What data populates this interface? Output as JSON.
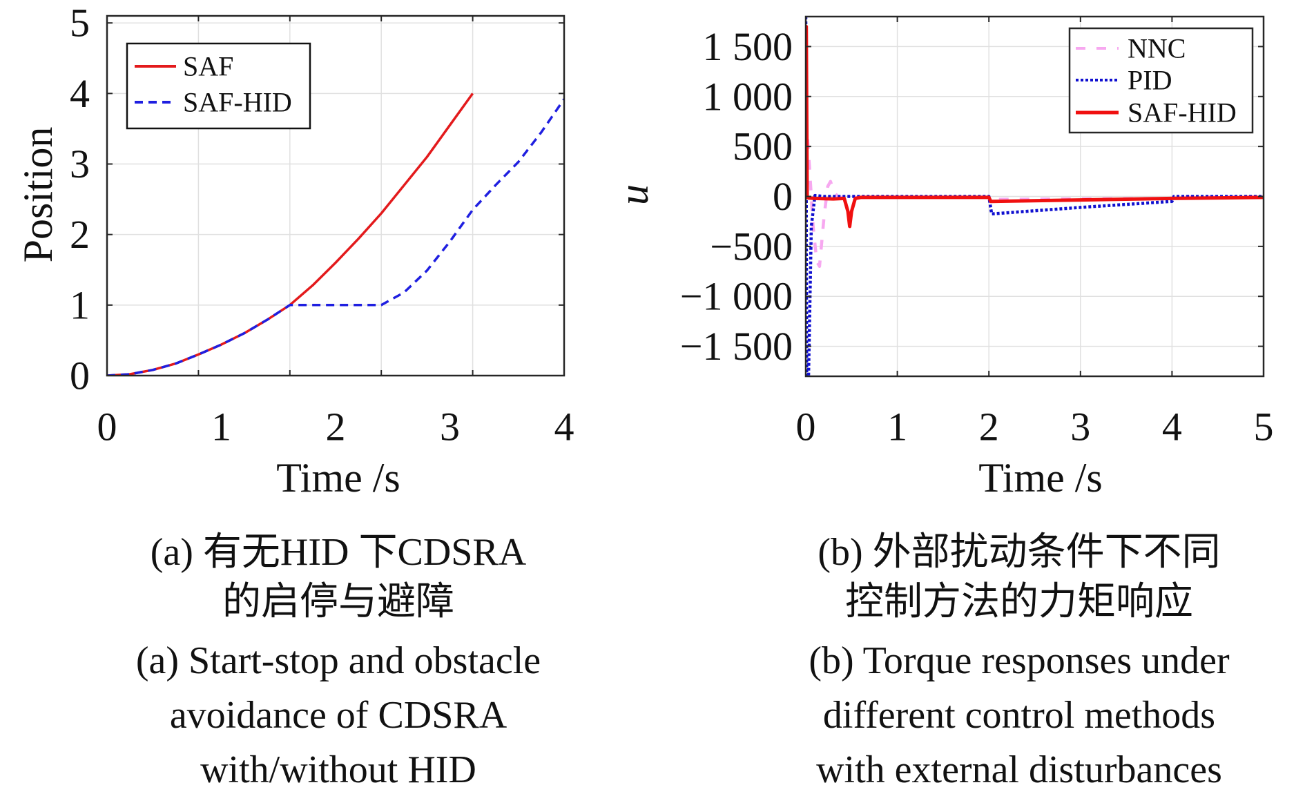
{
  "chart_data": [
    {
      "type": "line",
      "id": "a",
      "title": "",
      "xlabel": "Time /s",
      "ylabel": "Position",
      "xlim": [
        0,
        4
      ],
      "ylim": [
        0,
        5.1
      ],
      "x_ticks": [
        0,
        1,
        2,
        3,
        4
      ],
      "x_tick_labels": [
        "0",
        "1",
        "2",
        "3",
        "4"
      ],
      "x_grid": [
        0,
        0.8,
        1.6,
        2.4,
        3.2,
        4.0
      ],
      "y_ticks": [
        0,
        1,
        2,
        3,
        4,
        5
      ],
      "y_tick_labels": [
        "0",
        "1",
        "2",
        "3",
        "4",
        "5"
      ],
      "grid": true,
      "legend_position": "top-left",
      "series": [
        {
          "name": "SAF",
          "color": "#e31a1c",
          "style": "solid",
          "x": [
            0,
            0.2,
            0.4,
            0.6,
            0.8,
            1.0,
            1.2,
            1.4,
            1.6,
            1.8,
            2.0,
            2.2,
            2.4,
            2.6,
            2.8,
            3.0,
            3.2
          ],
          "y": [
            0,
            0.02,
            0.08,
            0.17,
            0.3,
            0.44,
            0.6,
            0.79,
            1.0,
            1.28,
            1.6,
            1.94,
            2.3,
            2.7,
            3.1,
            3.55,
            4.0
          ]
        },
        {
          "name": "SAF-HID",
          "color": "#1f1fe0",
          "style": "dashed",
          "x": [
            0,
            0.2,
            0.4,
            0.6,
            0.8,
            1.0,
            1.2,
            1.4,
            1.6,
            2.0,
            2.4,
            2.6,
            2.8,
            3.0,
            3.2,
            3.4,
            3.6,
            3.8,
            4.0
          ],
          "y": [
            0,
            0.02,
            0.08,
            0.17,
            0.3,
            0.44,
            0.6,
            0.79,
            1.0,
            1.0,
            1.0,
            1.18,
            1.49,
            1.9,
            2.35,
            2.7,
            3.03,
            3.45,
            3.92
          ]
        }
      ]
    },
    {
      "type": "line",
      "id": "b",
      "title": "",
      "xlabel": "Time /s",
      "ylabel": "u",
      "xlim": [
        0,
        5
      ],
      "ylim": [
        -1800,
        1800
      ],
      "x_ticks": [
        0,
        1,
        2,
        3,
        4,
        5
      ],
      "x_tick_labels": [
        "0",
        "1",
        "2",
        "3",
        "4",
        "5"
      ],
      "y_ticks": [
        -1500,
        -1000,
        -500,
        0,
        500,
        1000,
        1500
      ],
      "y_tick_labels": [
        "−1 500",
        "−1 000",
        "−500",
        "0",
        "500",
        "1 000",
        "1 500"
      ],
      "grid": true,
      "legend_position": "top-right",
      "series": [
        {
          "name": "NNC",
          "color": "#f7a8f0",
          "style": "dashed",
          "x": [
            0,
            0.01,
            0.04,
            0.08,
            0.12,
            0.15,
            0.2,
            0.24,
            0.27,
            0.31,
            0.36,
            0.5,
            1.0,
            2.0,
            2.02,
            3.0,
            4.0,
            4.05,
            5.0
          ],
          "y": [
            0,
            700,
            300,
            -300,
            -650,
            -700,
            -200,
            100,
            150,
            40,
            -10,
            -10,
            -10,
            -10,
            -30,
            -25,
            -20,
            -5,
            -5
          ]
        },
        {
          "name": "PID",
          "color": "#1010d0",
          "style": "dotted",
          "x": [
            0,
            0.005,
            0.01,
            0.03,
            0.06,
            0.1,
            0.2,
            0.5,
            1.0,
            2.0,
            2.03,
            3.0,
            4.0,
            4.02,
            5.0
          ],
          "y": [
            1800,
            0,
            -1800,
            -1800,
            -300,
            10,
            0,
            0,
            0,
            0,
            -175,
            -110,
            -50,
            0,
            0
          ]
        },
        {
          "name": "SAF-HID",
          "color": "#f01010",
          "style": "solid",
          "x": [
            0,
            0.005,
            0.015,
            0.03,
            0.1,
            0.3,
            0.42,
            0.46,
            0.48,
            0.5,
            0.54,
            0.6,
            1.0,
            2.0,
            2.02,
            3.0,
            4.0,
            5.0
          ],
          "y": [
            1700,
            1700,
            -10,
            -15,
            -20,
            -25,
            -20,
            -150,
            -300,
            -150,
            -20,
            -10,
            -10,
            -10,
            -50,
            -35,
            -20,
            -10
          ]
        }
      ]
    }
  ],
  "captions": {
    "a": {
      "cn_line1": "(a) 有无HID 下CDSRA",
      "cn_line2": "的启停与避障",
      "en_line1": "(a) Start-stop and obstacle",
      "en_line2": "avoidance of CDSRA",
      "en_line3": "with/without HID"
    },
    "b": {
      "cn_line1": "(b) 外部扰动条件下不同",
      "cn_line2": "控制方法的力矩响应",
      "en_line1": "(b) Torque responses under",
      "en_line2": "different control methods",
      "en_line3": "with external disturbances"
    }
  }
}
